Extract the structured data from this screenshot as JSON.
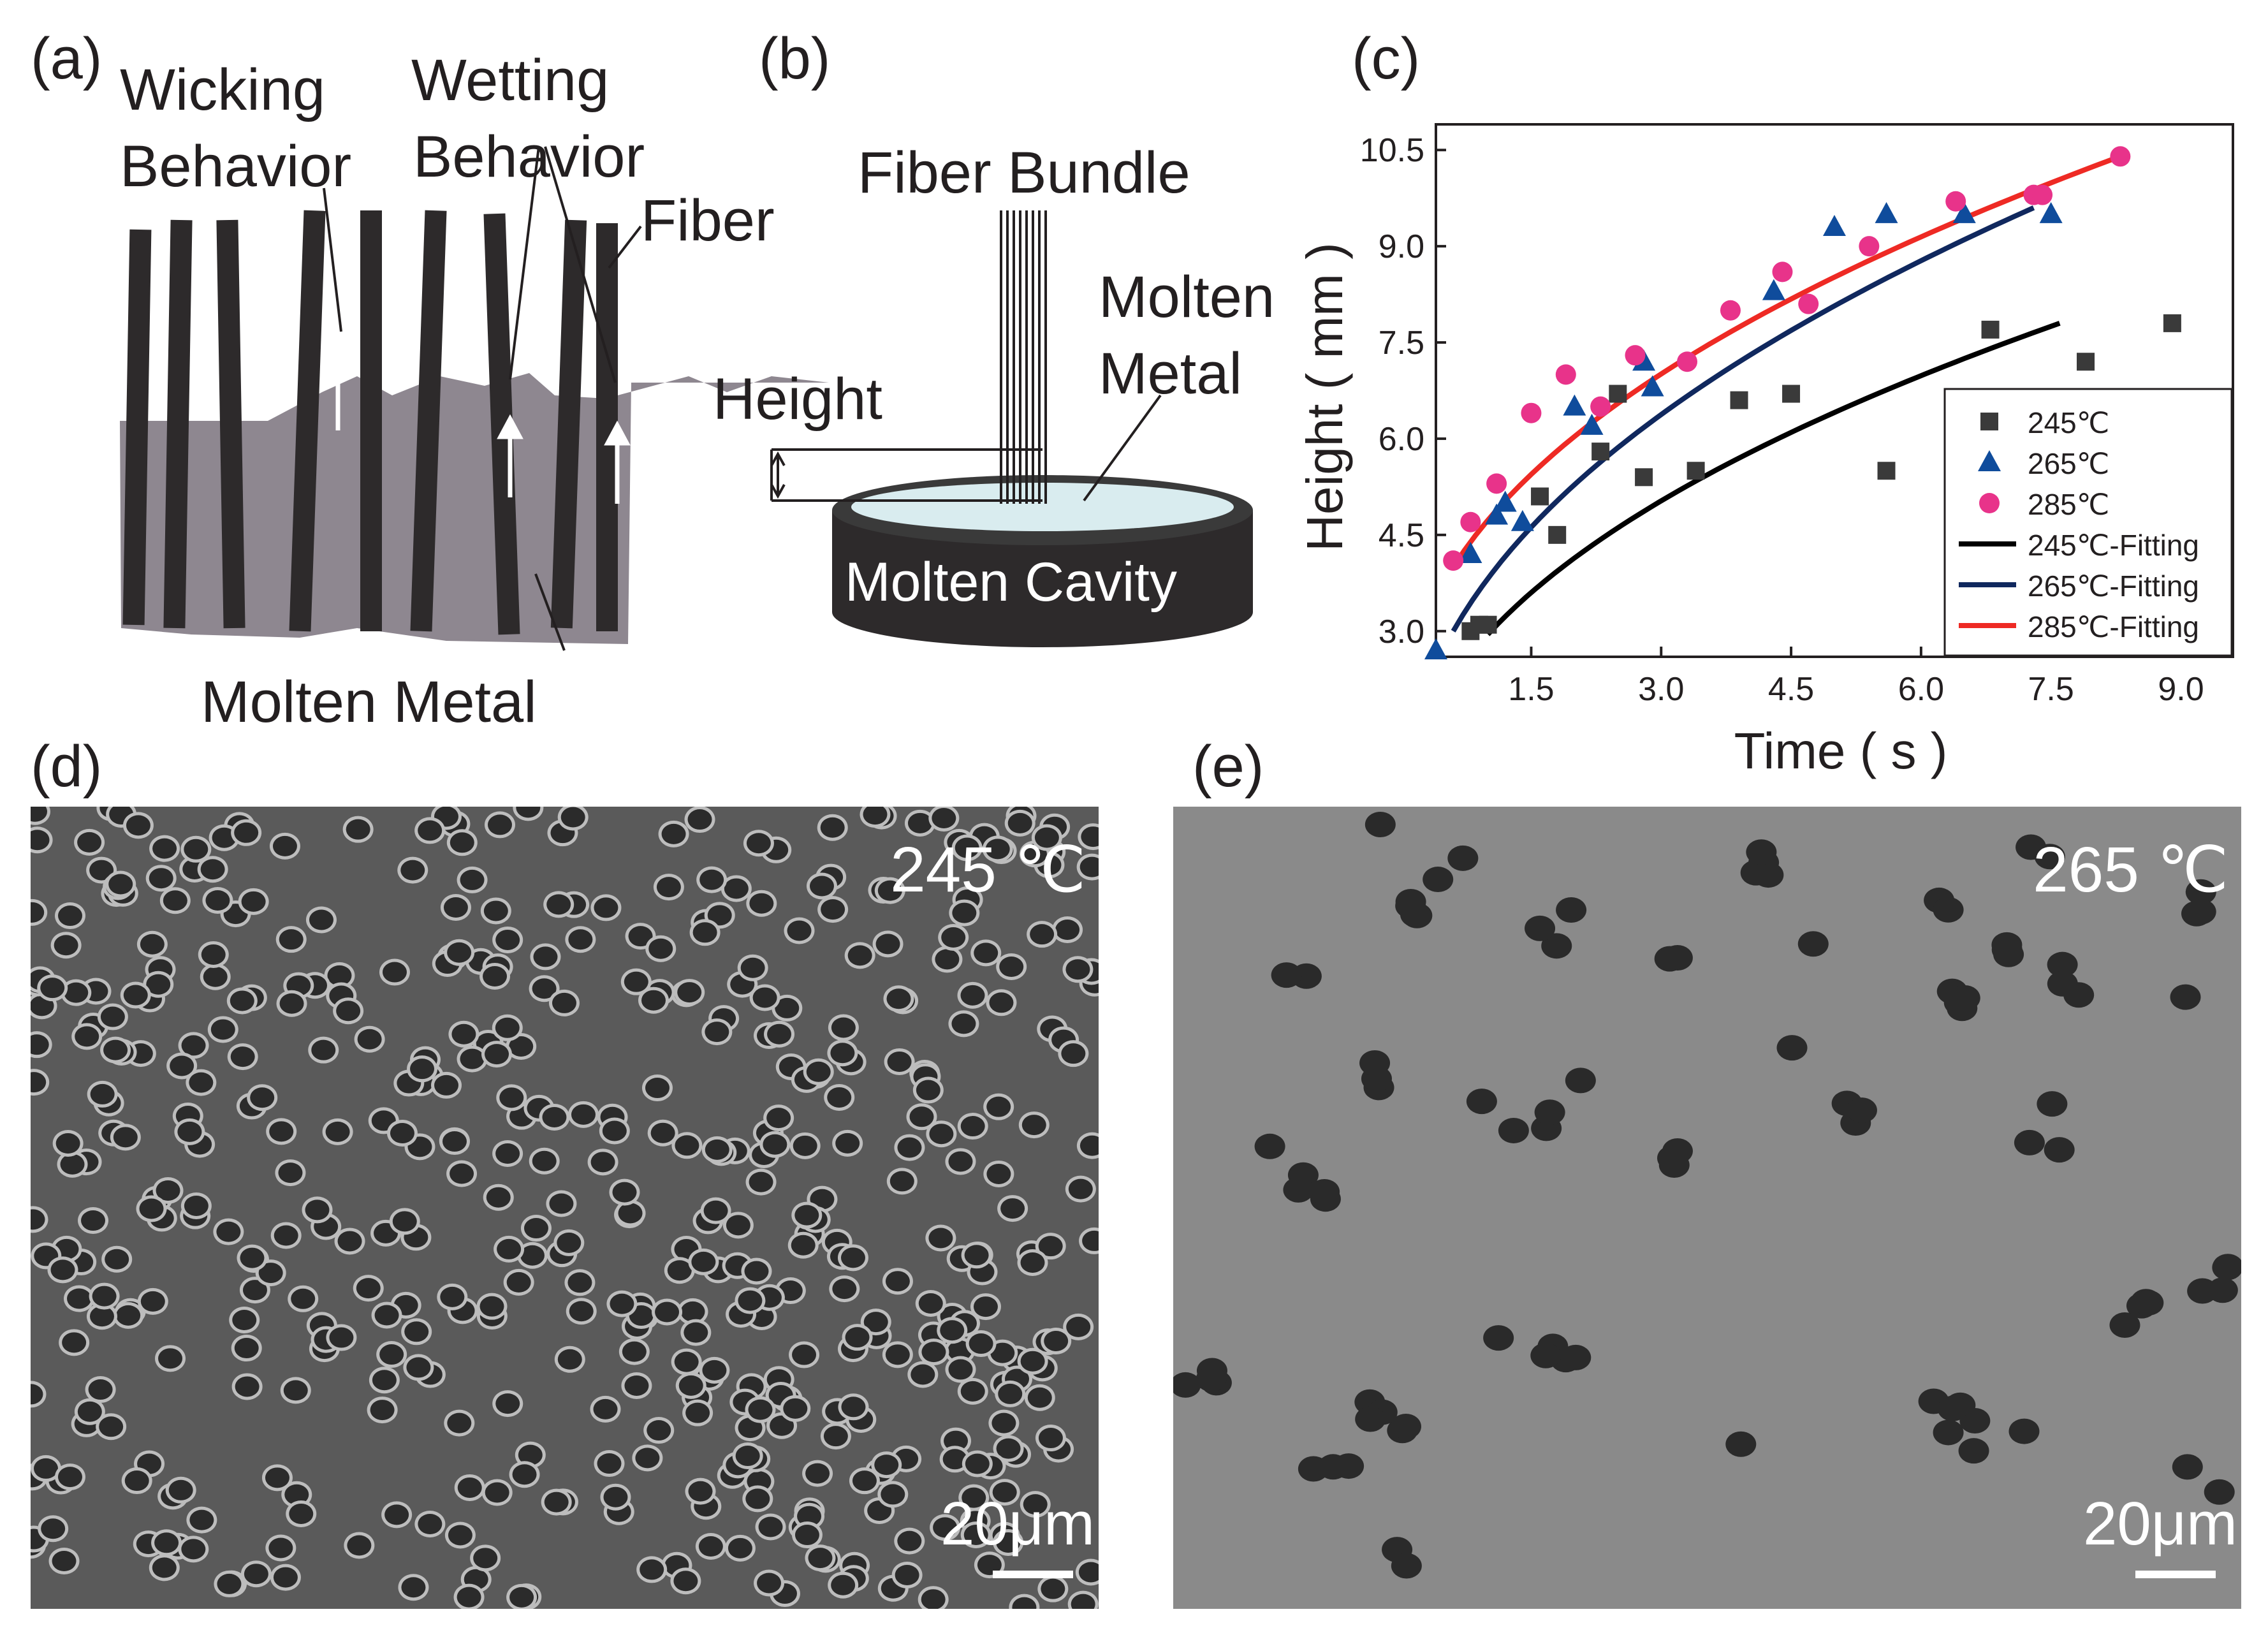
{
  "panels": {
    "a": {
      "label": "(a)",
      "wicking": [
        "Wicking",
        "Behavior"
      ],
      "wetting": [
        "Wetting",
        "Behavior"
      ],
      "fiber": "Fiber",
      "molten_metal": "Molten Metal"
    },
    "b": {
      "label": "(b)",
      "fiber_bundle": "Fiber Bundle",
      "molten_metal": [
        "Molten",
        "Metal"
      ],
      "height": "Height",
      "cavity": "Molten Cavity"
    },
    "c": {
      "label": "(c)"
    },
    "d": {
      "label": "(d)",
      "temp": "245 ℃",
      "scale": "20μm"
    },
    "e": {
      "label": "(e)",
      "temp": "265 ℃",
      "scale": "20μm"
    }
  },
  "colors": {
    "fiber": "#2d2a2b",
    "metal": "#8e8790",
    "s245": "#3a3a3a",
    "s265": "#0f4c9c",
    "s285": "#e8338a",
    "f245": "#000000",
    "f265": "#10285e",
    "f285": "#ee2a24",
    "sem_d": "#5a5a5a",
    "sem_e": "#8a8a8a"
  },
  "chart_data": {
    "type": "scatter",
    "xlabel": "Time ( s )",
    "ylabel": "Height ( mm )",
    "xlim": [
      0.4,
      9.6
    ],
    "ylim": [
      2.6,
      10.9
    ],
    "xticks": [
      "1.5",
      "3.0",
      "4.5",
      "6.0",
      "7.5",
      "9.0"
    ],
    "yticks": [
      "3.0",
      "4.5",
      "6.0",
      "7.5",
      "9.0",
      "10.5"
    ],
    "legend_position": "bottom-right",
    "series": [
      {
        "name": "245℃",
        "marker": "square",
        "x": [
          0.8,
          0.9,
          1.0,
          1.6,
          1.8,
          2.3,
          2.5,
          2.8,
          3.4,
          3.9,
          4.5,
          5.6,
          6.8,
          7.9,
          8.9
        ],
        "y": [
          3.0,
          3.1,
          3.1,
          5.1,
          4.5,
          5.8,
          6.7,
          5.4,
          5.5,
          6.6,
          6.7,
          5.5,
          7.7,
          7.2,
          7.8
        ]
      },
      {
        "name": "265℃",
        "marker": "triangle",
        "x": [
          0.4,
          0.8,
          0.8,
          1.1,
          1.2,
          1.4,
          2.0,
          2.2,
          2.8,
          2.9,
          4.3,
          5.0,
          5.6,
          6.5,
          7.5
        ],
        "y": [
          2.7,
          4.2,
          4.2,
          4.8,
          5.0,
          4.7,
          6.5,
          6.2,
          7.2,
          6.8,
          8.3,
          9.3,
          9.5,
          9.5,
          9.5
        ]
      },
      {
        "name": "285℃",
        "marker": "circle",
        "x": [
          0.6,
          0.8,
          1.1,
          1.5,
          1.9,
          2.3,
          2.7,
          3.3,
          3.8,
          4.4,
          4.7,
          5.4,
          6.4,
          7.3,
          7.4,
          8.3
        ],
        "y": [
          4.1,
          4.7,
          5.3,
          6.4,
          7.0,
          6.5,
          7.3,
          7.2,
          8.0,
          8.6,
          8.1,
          9.0,
          9.7,
          9.8,
          9.8,
          10.4
        ]
      },
      {
        "name": "245℃-Fitting",
        "type": "line",
        "x_start": 1.0,
        "x_end": 7.6,
        "y_start": 2.95,
        "y_end": 7.8
      },
      {
        "name": "265℃-Fitting",
        "type": "line",
        "x_start": 0.6,
        "x_end": 7.3,
        "y_start": 3.0,
        "y_end": 9.6
      },
      {
        "name": "285℃-Fitting",
        "type": "line",
        "x_start": 0.6,
        "x_end": 8.3,
        "y_start": 4.0,
        "y_end": 10.4
      }
    ]
  }
}
